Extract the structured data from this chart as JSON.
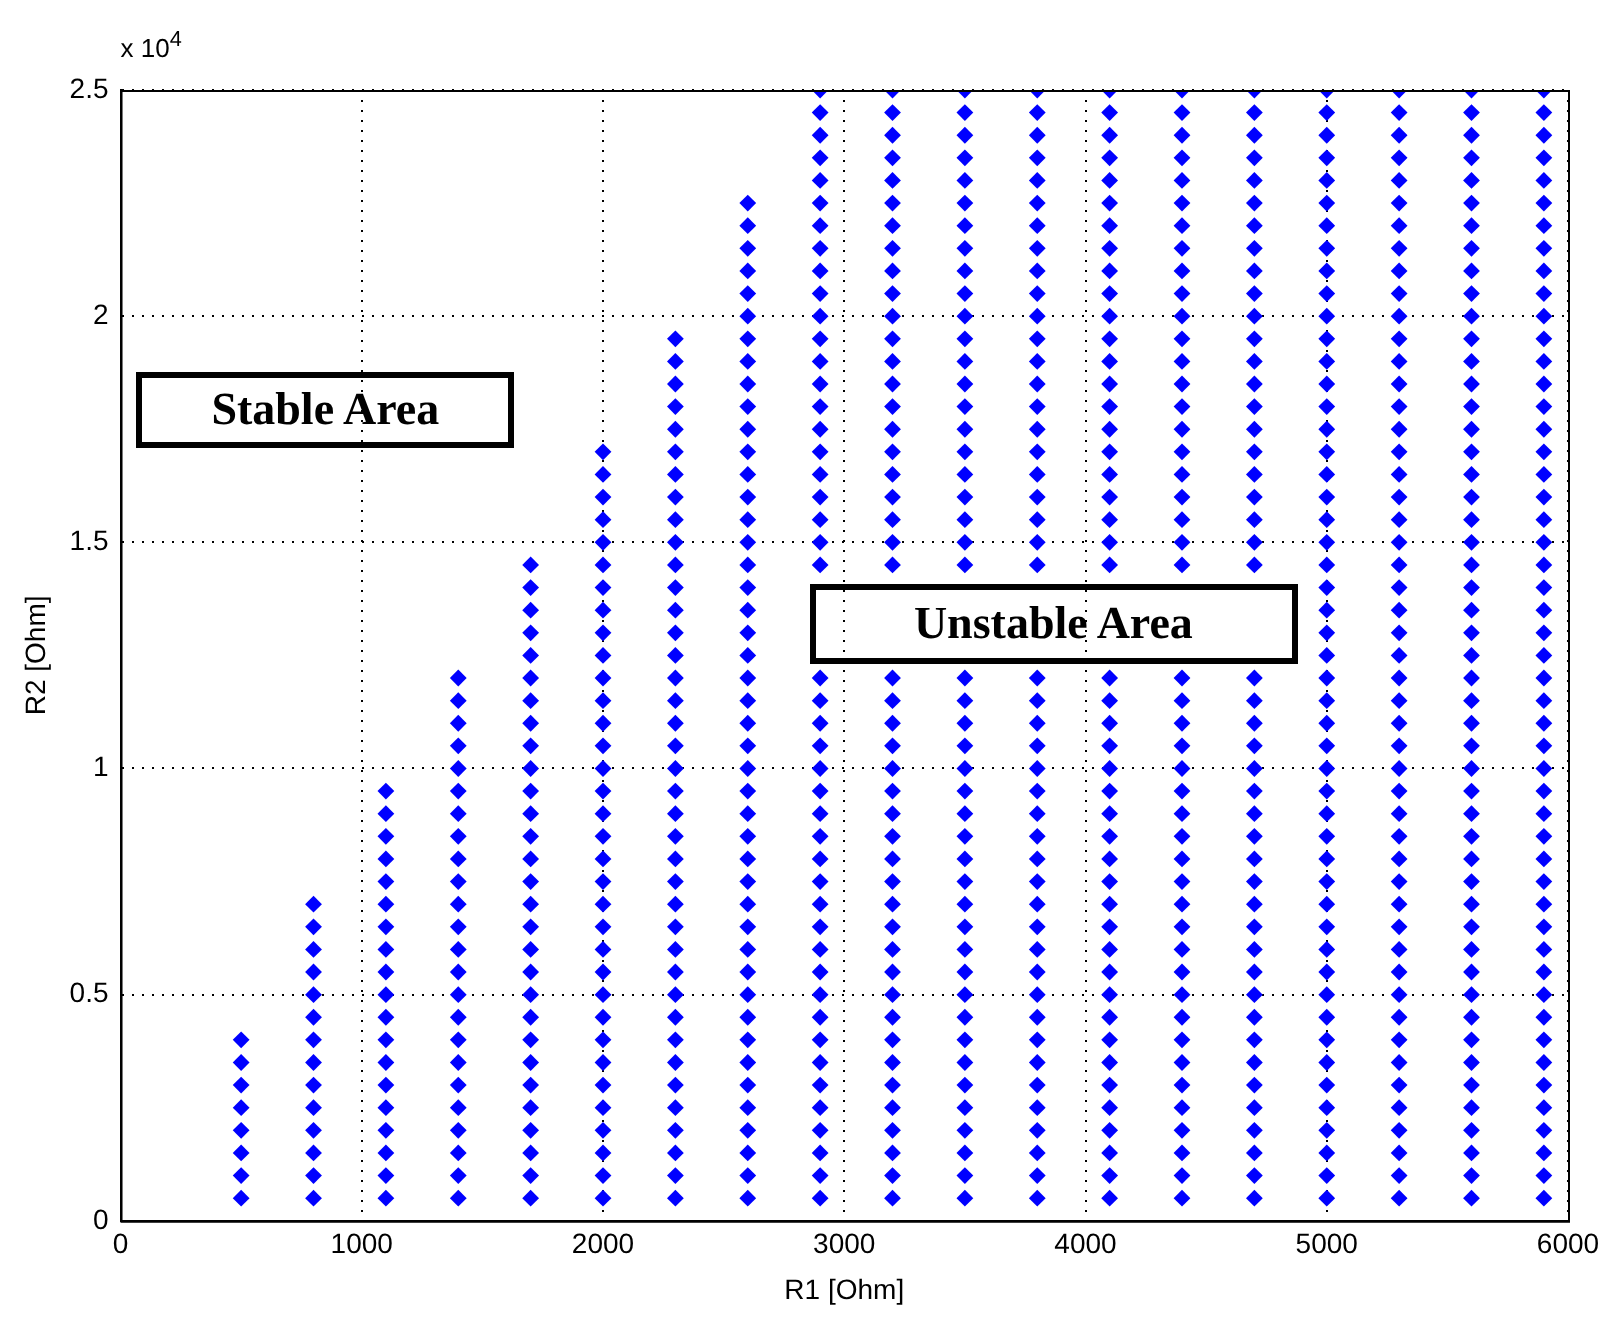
{
  "chart_data": {
    "type": "scatter",
    "xlabel": "R1 [Ohm]",
    "ylabel": "R2 [Ohm]",
    "xlim": [
      0,
      6000
    ],
    "ylim": [
      0,
      2.5
    ],
    "xticks": [
      0,
      1000,
      2000,
      3000,
      4000,
      5000,
      6000
    ],
    "yticks": [
      0,
      0.5,
      1,
      1.5,
      2,
      2.5
    ],
    "grid": true,
    "marker": "diamond",
    "annotations": [
      "x 10$^{4}$",
      "Stable Area",
      "Unstable Area"
    ],
    "series": [
      {
        "color": "#0000ff",
        "x": [
          500,
          500,
          500,
          500,
          500,
          500,
          500,
          500
        ],
        "values": [
          0.05,
          0.1,
          0.15,
          0.2,
          0.25,
          0.3,
          0.35,
          0.4
        ]
      },
      {
        "color": "#0000ff",
        "x": [
          800,
          800,
          800,
          800,
          800,
          800,
          800,
          800,
          800,
          800,
          800,
          800,
          800,
          800
        ],
        "values": [
          0.05,
          0.1,
          0.15,
          0.2,
          0.25,
          0.3,
          0.35,
          0.4,
          0.45,
          0.5,
          0.55,
          0.6,
          0.65,
          0.7
        ]
      },
      {
        "color": "#0000ff",
        "x": [
          1100,
          1100,
          1100,
          1100,
          1100,
          1100,
          1100,
          1100,
          1100,
          1100,
          1100,
          1100,
          1100,
          1100,
          1100,
          1100,
          1100,
          1100,
          1100
        ],
        "values": [
          0.05,
          0.1,
          0.15,
          0.2,
          0.25,
          0.3,
          0.35,
          0.4,
          0.45,
          0.5,
          0.55,
          0.6,
          0.65,
          0.7,
          0.75,
          0.8,
          0.85,
          0.9,
          0.95
        ]
      },
      {
        "color": "#0000ff",
        "x": [
          1400,
          1400,
          1400,
          1400,
          1400,
          1400,
          1400,
          1400,
          1400,
          1400,
          1400,
          1400,
          1400,
          1400,
          1400,
          1400,
          1400,
          1400,
          1400,
          1400,
          1400,
          1400,
          1400,
          1400
        ],
        "values": [
          0.05,
          0.1,
          0.15,
          0.2,
          0.25,
          0.3,
          0.35,
          0.4,
          0.45,
          0.5,
          0.55,
          0.6,
          0.65,
          0.7,
          0.75,
          0.8,
          0.85,
          0.9,
          0.95,
          1,
          1.05,
          1.1,
          1.15,
          1.2
        ]
      },
      {
        "color": "#0000ff",
        "x": [
          1700,
          1700,
          1700,
          1700,
          1700,
          1700,
          1700,
          1700,
          1700,
          1700,
          1700,
          1700,
          1700,
          1700,
          1700,
          1700,
          1700,
          1700,
          1700,
          1700,
          1700,
          1700,
          1700,
          1700,
          1700,
          1700,
          1700,
          1700,
          1700
        ],
        "values": [
          0.05,
          0.1,
          0.15,
          0.2,
          0.25,
          0.3,
          0.35,
          0.4,
          0.45,
          0.5,
          0.55,
          0.6,
          0.65,
          0.7,
          0.75,
          0.8,
          0.85,
          0.9,
          0.95,
          1,
          1.05,
          1.1,
          1.15,
          1.2,
          1.25,
          1.3,
          1.35,
          1.4,
          1.45
        ]
      },
      {
        "color": "#0000ff",
        "x": [
          2000,
          2000,
          2000,
          2000,
          2000,
          2000,
          2000,
          2000,
          2000,
          2000,
          2000,
          2000,
          2000,
          2000,
          2000,
          2000,
          2000,
          2000,
          2000,
          2000,
          2000,
          2000,
          2000,
          2000,
          2000,
          2000,
          2000,
          2000,
          2000,
          2000,
          2000,
          2000,
          2000,
          2000
        ],
        "values": [
          0.05,
          0.1,
          0.15,
          0.2,
          0.25,
          0.3,
          0.35,
          0.4,
          0.45,
          0.5,
          0.55,
          0.6,
          0.65,
          0.7,
          0.75,
          0.8,
          0.85,
          0.9,
          0.95,
          1,
          1.05,
          1.1,
          1.15,
          1.2,
          1.25,
          1.3,
          1.35,
          1.4,
          1.45,
          1.5,
          1.55,
          1.6,
          1.65,
          1.7
        ]
      },
      {
        "color": "#0000ff",
        "x": [
          2300,
          2300,
          2300,
          2300,
          2300,
          2300,
          2300,
          2300,
          2300,
          2300,
          2300,
          2300,
          2300,
          2300,
          2300,
          2300,
          2300,
          2300,
          2300,
          2300,
          2300,
          2300,
          2300,
          2300,
          2300,
          2300,
          2300,
          2300,
          2300,
          2300,
          2300,
          2300,
          2300,
          2300,
          2300,
          2300,
          2300,
          2300,
          2300
        ],
        "values": [
          0.05,
          0.1,
          0.15,
          0.2,
          0.25,
          0.3,
          0.35,
          0.4,
          0.45,
          0.5,
          0.55,
          0.6,
          0.65,
          0.7,
          0.75,
          0.8,
          0.85,
          0.9,
          0.95,
          1,
          1.05,
          1.1,
          1.15,
          1.2,
          1.25,
          1.3,
          1.35,
          1.4,
          1.45,
          1.5,
          1.55,
          1.6,
          1.65,
          1.7,
          1.75,
          1.8,
          1.85,
          1.9,
          1.95
        ]
      },
      {
        "color": "#0000ff",
        "x": [
          2600,
          2600,
          2600,
          2600,
          2600,
          2600,
          2600,
          2600,
          2600,
          2600,
          2600,
          2600,
          2600,
          2600,
          2600,
          2600,
          2600,
          2600,
          2600,
          2600,
          2600,
          2600,
          2600,
          2600,
          2600,
          2600,
          2600,
          2600,
          2600,
          2600,
          2600,
          2600,
          2600,
          2600,
          2600,
          2600,
          2600,
          2600,
          2600,
          2600,
          2600,
          2600,
          2600,
          2600,
          2600
        ],
        "values": [
          0.05,
          0.1,
          0.15,
          0.2,
          0.25,
          0.3,
          0.35,
          0.4,
          0.45,
          0.5,
          0.55,
          0.6,
          0.65,
          0.7,
          0.75,
          0.8,
          0.85,
          0.9,
          0.95,
          1,
          1.05,
          1.1,
          1.15,
          1.2,
          1.25,
          1.3,
          1.35,
          1.4,
          1.45,
          1.5,
          1.55,
          1.6,
          1.65,
          1.7,
          1.75,
          1.8,
          1.85,
          1.9,
          1.95,
          2,
          2.05,
          2.1,
          2.15,
          2.2,
          2.25
        ]
      },
      {
        "color": "#0000ff",
        "x": [
          2900,
          2900,
          2900,
          2900,
          2900,
          2900,
          2900,
          2900,
          2900,
          2900,
          2900,
          2900,
          2900,
          2900,
          2900,
          2900,
          2900,
          2900,
          2900,
          2900,
          2900,
          2900,
          2900,
          2900,
          null,
          null,
          null,
          null,
          2900,
          2900,
          2900,
          2900,
          2900,
          2900,
          2900,
          2900,
          2900,
          2900,
          2900,
          2900,
          2900,
          2900,
          2900,
          2900,
          2900,
          2900,
          2900,
          2900,
          2900,
          2900
        ],
        "values": [
          0.05,
          0.1,
          0.15,
          0.2,
          0.25,
          0.3,
          0.35,
          0.4,
          0.45,
          0.5,
          0.55,
          0.6,
          0.65,
          0.7,
          0.75,
          0.8,
          0.85,
          0.9,
          0.95,
          1,
          1.05,
          1.1,
          1.15,
          1.2,
          null,
          null,
          null,
          null,
          1.45,
          1.5,
          1.55,
          1.6,
          1.65,
          1.7,
          1.75,
          1.8,
          1.85,
          1.9,
          1.95,
          2,
          2.05,
          2.1,
          2.15,
          2.2,
          2.25,
          2.3,
          2.35,
          2.4,
          2.45,
          2.5
        ]
      },
      {
        "color": "#0000ff",
        "x": [
          3200,
          3200,
          3200,
          3200,
          3200,
          3200,
          3200,
          3200,
          3200,
          3200,
          3200,
          3200,
          3200,
          3200,
          3200,
          3200,
          3200,
          3200,
          3200,
          3200,
          3200,
          3200,
          3200,
          3200,
          null,
          null,
          null,
          null,
          3200,
          3200,
          3200,
          3200,
          3200,
          3200,
          3200,
          3200,
          3200,
          3200,
          3200,
          3200,
          3200,
          3200,
          3200,
          3200,
          3200,
          3200,
          3200,
          3200,
          3200,
          3200
        ],
        "values": [
          0.05,
          0.1,
          0.15,
          0.2,
          0.25,
          0.3,
          0.35,
          0.4,
          0.45,
          0.5,
          0.55,
          0.6,
          0.65,
          0.7,
          0.75,
          0.8,
          0.85,
          0.9,
          0.95,
          1,
          1.05,
          1.1,
          1.15,
          1.2,
          null,
          null,
          null,
          null,
          1.45,
          1.5,
          1.55,
          1.6,
          1.65,
          1.7,
          1.75,
          1.8,
          1.85,
          1.9,
          1.95,
          2,
          2.05,
          2.1,
          2.15,
          2.2,
          2.25,
          2.3,
          2.35,
          2.4,
          2.45,
          2.5
        ]
      },
      {
        "color": "#0000ff",
        "x": [
          3500,
          3500,
          3500,
          3500,
          3500,
          3500,
          3500,
          3500,
          3500,
          3500,
          3500,
          3500,
          3500,
          3500,
          3500,
          3500,
          3500,
          3500,
          3500,
          3500,
          3500,
          3500,
          3500,
          3500,
          null,
          null,
          null,
          null,
          3500,
          3500,
          3500,
          3500,
          3500,
          3500,
          3500,
          3500,
          3500,
          3500,
          3500,
          3500,
          3500,
          3500,
          3500,
          3500,
          3500,
          3500,
          3500,
          3500,
          3500,
          3500
        ],
        "values": [
          0.05,
          0.1,
          0.15,
          0.2,
          0.25,
          0.3,
          0.35,
          0.4,
          0.45,
          0.5,
          0.55,
          0.6,
          0.65,
          0.7,
          0.75,
          0.8,
          0.85,
          0.9,
          0.95,
          1,
          1.05,
          1.1,
          1.15,
          1.2,
          null,
          null,
          null,
          null,
          1.45,
          1.5,
          1.55,
          1.6,
          1.65,
          1.7,
          1.75,
          1.8,
          1.85,
          1.9,
          1.95,
          2,
          2.05,
          2.1,
          2.15,
          2.2,
          2.25,
          2.3,
          2.35,
          2.4,
          2.45,
          2.5
        ]
      },
      {
        "color": "#0000ff",
        "x": [
          3800,
          3800,
          3800,
          3800,
          3800,
          3800,
          3800,
          3800,
          3800,
          3800,
          3800,
          3800,
          3800,
          3800,
          3800,
          3800,
          3800,
          3800,
          3800,
          3800,
          3800,
          3800,
          3800,
          3800,
          null,
          null,
          null,
          null,
          3800,
          3800,
          3800,
          3800,
          3800,
          3800,
          3800,
          3800,
          3800,
          3800,
          3800,
          3800,
          3800,
          3800,
          3800,
          3800,
          3800,
          3800,
          3800,
          3800,
          3800,
          3800
        ],
        "values": [
          0.05,
          0.1,
          0.15,
          0.2,
          0.25,
          0.3,
          0.35,
          0.4,
          0.45,
          0.5,
          0.55,
          0.6,
          0.65,
          0.7,
          0.75,
          0.8,
          0.85,
          0.9,
          0.95,
          1,
          1.05,
          1.1,
          1.15,
          1.2,
          null,
          null,
          null,
          null,
          1.45,
          1.5,
          1.55,
          1.6,
          1.65,
          1.7,
          1.75,
          1.8,
          1.85,
          1.9,
          1.95,
          2,
          2.05,
          2.1,
          2.15,
          2.2,
          2.25,
          2.3,
          2.35,
          2.4,
          2.45,
          2.5
        ]
      },
      {
        "color": "#0000ff",
        "x": [
          4100,
          4100,
          4100,
          4100,
          4100,
          4100,
          4100,
          4100,
          4100,
          4100,
          4100,
          4100,
          4100,
          4100,
          4100,
          4100,
          4100,
          4100,
          4100,
          4100,
          4100,
          4100,
          4100,
          4100,
          null,
          null,
          null,
          null,
          4100,
          4100,
          4100,
          4100,
          4100,
          4100,
          4100,
          4100,
          4100,
          4100,
          4100,
          4100,
          4100,
          4100,
          4100,
          4100,
          4100,
          4100,
          4100,
          4100,
          4100,
          4100
        ],
        "values": [
          0.05,
          0.1,
          0.15,
          0.2,
          0.25,
          0.3,
          0.35,
          0.4,
          0.45,
          0.5,
          0.55,
          0.6,
          0.65,
          0.7,
          0.75,
          0.8,
          0.85,
          0.9,
          0.95,
          1,
          1.05,
          1.1,
          1.15,
          1.2,
          null,
          null,
          null,
          null,
          1.45,
          1.5,
          1.55,
          1.6,
          1.65,
          1.7,
          1.75,
          1.8,
          1.85,
          1.9,
          1.95,
          2,
          2.05,
          2.1,
          2.15,
          2.2,
          2.25,
          2.3,
          2.35,
          2.4,
          2.45,
          2.5
        ]
      },
      {
        "color": "#0000ff",
        "x": [
          4400,
          4400,
          4400,
          4400,
          4400,
          4400,
          4400,
          4400,
          4400,
          4400,
          4400,
          4400,
          4400,
          4400,
          4400,
          4400,
          4400,
          4400,
          4400,
          4400,
          4400,
          4400,
          4400,
          4400,
          null,
          null,
          null,
          null,
          4400,
          4400,
          4400,
          4400,
          4400,
          4400,
          4400,
          4400,
          4400,
          4400,
          4400,
          4400,
          4400,
          4400,
          4400,
          4400,
          4400,
          4400,
          4400,
          4400,
          4400,
          4400
        ],
        "values": [
          0.05,
          0.1,
          0.15,
          0.2,
          0.25,
          0.3,
          0.35,
          0.4,
          0.45,
          0.5,
          0.55,
          0.6,
          0.65,
          0.7,
          0.75,
          0.8,
          0.85,
          0.9,
          0.95,
          1,
          1.05,
          1.1,
          1.15,
          1.2,
          null,
          null,
          null,
          null,
          1.45,
          1.5,
          1.55,
          1.6,
          1.65,
          1.7,
          1.75,
          1.8,
          1.85,
          1.9,
          1.95,
          2,
          2.05,
          2.1,
          2.15,
          2.2,
          2.25,
          2.3,
          2.35,
          2.4,
          2.45,
          2.5
        ]
      },
      {
        "color": "#0000ff",
        "x": [
          4700,
          4700,
          4700,
          4700,
          4700,
          4700,
          4700,
          4700,
          4700,
          4700,
          4700,
          4700,
          4700,
          4700,
          4700,
          4700,
          4700,
          4700,
          4700,
          4700,
          4700,
          4700,
          4700,
          4700,
          null,
          null,
          null,
          null,
          4700,
          4700,
          4700,
          4700,
          4700,
          4700,
          4700,
          4700,
          4700,
          4700,
          4700,
          4700,
          4700,
          4700,
          4700,
          4700,
          4700,
          4700,
          4700,
          4700,
          4700,
          4700
        ],
        "values": [
          0.05,
          0.1,
          0.15,
          0.2,
          0.25,
          0.3,
          0.35,
          0.4,
          0.45,
          0.5,
          0.55,
          0.6,
          0.65,
          0.7,
          0.75,
          0.8,
          0.85,
          0.9,
          0.95,
          1,
          1.05,
          1.1,
          1.15,
          1.2,
          null,
          null,
          null,
          null,
          1.45,
          1.5,
          1.55,
          1.6,
          1.65,
          1.7,
          1.75,
          1.8,
          1.85,
          1.9,
          1.95,
          2,
          2.05,
          2.1,
          2.15,
          2.2,
          2.25,
          2.3,
          2.35,
          2.4,
          2.45,
          2.5
        ]
      },
      {
        "color": "#0000ff",
        "x": [
          5000,
          5000,
          5000,
          5000,
          5000,
          5000,
          5000,
          5000,
          5000,
          5000,
          5000,
          5000,
          5000,
          5000,
          5000,
          5000,
          5000,
          5000,
          5000,
          5000,
          5000,
          5000,
          5000,
          5000,
          5000,
          5000,
          5000,
          5000,
          5000,
          5000,
          5000,
          5000,
          5000,
          5000,
          5000,
          5000,
          5000,
          5000,
          5000,
          5000,
          5000,
          5000,
          5000,
          5000,
          5000,
          5000,
          5000,
          5000,
          5000,
          5000
        ],
        "values": [
          0.05,
          0.1,
          0.15,
          0.2,
          0.25,
          0.3,
          0.35,
          0.4,
          0.45,
          0.5,
          0.55,
          0.6,
          0.65,
          0.7,
          0.75,
          0.8,
          0.85,
          0.9,
          0.95,
          1,
          1.05,
          1.1,
          1.15,
          1.2,
          1.25,
          1.3,
          1.35,
          1.4,
          1.45,
          1.5,
          1.55,
          1.6,
          1.65,
          1.7,
          1.75,
          1.8,
          1.85,
          1.9,
          1.95,
          2,
          2.05,
          2.1,
          2.15,
          2.2,
          2.25,
          2.3,
          2.35,
          2.4,
          2.45,
          2.5
        ]
      },
      {
        "color": "#0000ff",
        "x": [
          5300,
          5300,
          5300,
          5300,
          5300,
          5300,
          5300,
          5300,
          5300,
          5300,
          5300,
          5300,
          5300,
          5300,
          5300,
          5300,
          5300,
          5300,
          5300,
          5300,
          5300,
          5300,
          5300,
          5300,
          5300,
          5300,
          5300,
          5300,
          5300,
          5300,
          5300,
          5300,
          5300,
          5300,
          5300,
          5300,
          5300,
          5300,
          5300,
          5300,
          5300,
          5300,
          5300,
          5300,
          5300,
          5300,
          5300,
          5300,
          5300,
          5300
        ],
        "values": [
          0.05,
          0.1,
          0.15,
          0.2,
          0.25,
          0.3,
          0.35,
          0.4,
          0.45,
          0.5,
          0.55,
          0.6,
          0.65,
          0.7,
          0.75,
          0.8,
          0.85,
          0.9,
          0.95,
          1,
          1.05,
          1.1,
          1.15,
          1.2,
          1.25,
          1.3,
          1.35,
          1.4,
          1.45,
          1.5,
          1.55,
          1.6,
          1.65,
          1.7,
          1.75,
          1.8,
          1.85,
          1.9,
          1.95,
          2,
          2.05,
          2.1,
          2.15,
          2.2,
          2.25,
          2.3,
          2.35,
          2.4,
          2.45,
          2.5
        ]
      },
      {
        "color": "#0000ff",
        "x": [
          5600,
          5600,
          5600,
          5600,
          5600,
          5600,
          5600,
          5600,
          5600,
          5600,
          5600,
          5600,
          5600,
          5600,
          5600,
          5600,
          5600,
          5600,
          5600,
          5600,
          5600,
          5600,
          5600,
          5600,
          5600,
          5600,
          5600,
          5600,
          5600,
          5600,
          5600,
          5600,
          5600,
          5600,
          5600,
          5600,
          5600,
          5600,
          5600,
          5600,
          5600,
          5600,
          5600,
          5600,
          5600,
          5600,
          5600,
          5600,
          5600,
          5600
        ],
        "values": [
          0.05,
          0.1,
          0.15,
          0.2,
          0.25,
          0.3,
          0.35,
          0.4,
          0.45,
          0.5,
          0.55,
          0.6,
          0.65,
          0.7,
          0.75,
          0.8,
          0.85,
          0.9,
          0.95,
          1,
          1.05,
          1.1,
          1.15,
          1.2,
          1.25,
          1.3,
          1.35,
          1.4,
          1.45,
          1.5,
          1.55,
          1.6,
          1.65,
          1.7,
          1.75,
          1.8,
          1.85,
          1.9,
          1.95,
          2,
          2.05,
          2.1,
          2.15,
          2.2,
          2.25,
          2.3,
          2.35,
          2.4,
          2.45,
          2.5
        ]
      },
      {
        "color": "#0000ff",
        "x": [
          5900,
          5900,
          5900,
          5900,
          5900,
          5900,
          5900,
          5900,
          5900,
          5900,
          5900,
          5900,
          5900,
          5900,
          5900,
          5900,
          5900,
          5900,
          5900,
          5900,
          5900,
          5900,
          5900,
          5900,
          5900,
          5900,
          5900,
          5900,
          5900,
          5900,
          5900,
          5900,
          5900,
          5900,
          5900,
          5900,
          5900,
          5900,
          5900,
          5900,
          5900,
          5900,
          5900,
          5900,
          5900,
          5900,
          5900,
          5900,
          5900,
          5900
        ],
        "values": [
          0.05,
          0.1,
          0.15,
          0.2,
          0.25,
          0.3,
          0.35,
          0.4,
          0.45,
          0.5,
          0.55,
          0.6,
          0.65,
          0.7,
          0.75,
          0.8,
          0.85,
          0.9,
          0.95,
          1,
          1.05,
          1.1,
          1.15,
          1.2,
          1.25,
          1.3,
          1.35,
          1.4,
          1.45,
          1.5,
          1.55,
          1.6,
          1.65,
          1.7,
          1.75,
          1.8,
          1.85,
          1.9,
          1.95,
          2,
          2.05,
          2.1,
          2.15,
          2.2,
          2.25,
          2.3,
          2.35,
          2.4,
          2.45,
          2.5
        ]
      }
    ]
  }
}
